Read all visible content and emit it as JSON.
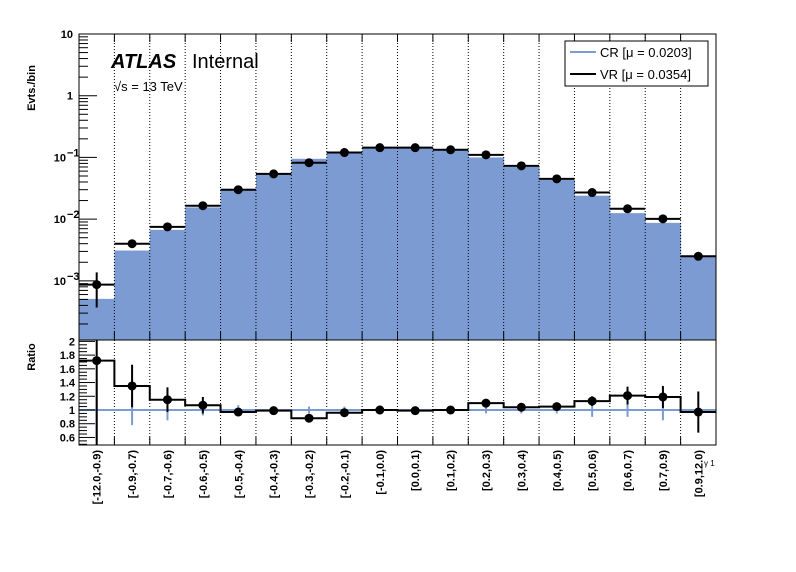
{
  "chart_data": [
    {
      "type": "bar",
      "panel": "main",
      "ylabel": "Evts./bin",
      "yscale": "log",
      "ylim": [
        0.00011,
        10
      ],
      "ytick_labels": [
        {
          "value": 10,
          "label": "10"
        },
        {
          "value": 1,
          "label": "1"
        },
        {
          "value": 0.1,
          "label": "10",
          "exp": "−1"
        },
        {
          "value": 0.01,
          "label": "10",
          "exp": "−2"
        },
        {
          "value": 0.001,
          "label": "10",
          "exp": "−3"
        }
      ],
      "grid": "vertical dotted at bin edges",
      "annotations": {
        "atlas": "ATLAS",
        "status": "Internal",
        "energy": "√s = 13 TeV"
      },
      "legend": {
        "placement": "top-right",
        "entries": [
          {
            "label": "CR [μ = 0.0203]",
            "color": "#7b9bd2"
          },
          {
            "label": "VR [μ = 0.0354]",
            "color": "#000000"
          }
        ]
      },
      "categories": [
        "[-12.0,-0.9)",
        "[-0.9,-0.7)",
        "[-0.7,-0.6)",
        "[-0.6,-0.5)",
        "[-0.5,-0.4)",
        "[-0.4,-0.3)",
        "[-0.3,-0.2)",
        "[-0.2,-0.1)",
        "[-0.1,0.0)",
        "[0.0,0.1)",
        "[0.1,0.2)",
        "[0.2,0.3)",
        "[0.3,0.4)",
        "[0.4,0.5)",
        "[0.5,0.6)",
        "[0.6,0.7)",
        "[0.7,0.9)",
        "[0.9,12.0)"
      ],
      "series": [
        {
          "name": "CR",
          "style": "filled histogram",
          "color": "#7b9bd2",
          "values": [
            0.00051,
            0.0031,
            0.0067,
            0.0155,
            0.031,
            0.055,
            0.095,
            0.124,
            0.143,
            0.146,
            0.133,
            0.1,
            0.07,
            0.043,
            0.024,
            0.0125,
            0.0087,
            0.0025
          ]
        },
        {
          "name": "VR",
          "style": "points with error bars and step line",
          "color": "#000000",
          "values": [
            0.00087,
            0.004,
            0.0075,
            0.0165,
            0.03,
            0.054,
            0.082,
            0.12,
            0.144,
            0.144,
            0.133,
            0.11,
            0.073,
            0.045,
            0.027,
            0.0147,
            0.0101,
            0.0025
          ],
          "errors": [
            0.0005,
            0.0004,
            0.0005,
            0.0008,
            0.001,
            0.0015,
            0.002,
            0.002,
            0.002,
            0.002,
            0.002,
            0.002,
            0.0018,
            0.0013,
            0.0012,
            0.0012,
            0.0011,
            0.0003
          ]
        }
      ]
    },
    {
      "type": "line",
      "panel": "ratio",
      "ylabel": "Ratio",
      "xlabel": "γ 1",
      "ylim": [
        0.49,
        2.02
      ],
      "ytick_labels": [
        "0.6",
        "0.8",
        "1",
        "1.2",
        "1.4",
        "1.6",
        "1.8",
        "2"
      ],
      "reference": {
        "value": 1,
        "color": "#7b9bd2",
        "errors": [
          0.45,
          0.22,
          0.15,
          0.08,
          0.07,
          0.05,
          0.05,
          0.05,
          0.02,
          0.02,
          0.02,
          0.05,
          0.05,
          0.05,
          0.1,
          0.1,
          0.15,
          0.03
        ]
      },
      "values": [
        1.72,
        1.35,
        1.15,
        1.07,
        0.97,
        0.99,
        0.88,
        0.96,
        1.0,
        0.99,
        1.0,
        1.1,
        1.04,
        1.05,
        1.13,
        1.21,
        1.19,
        0.97
      ],
      "errors": [
        1.25,
        0.31,
        0.18,
        0.12,
        0.05,
        0.04,
        0.04,
        0.04,
        0.03,
        0.03,
        0.03,
        0.04,
        0.04,
        0.05,
        0.07,
        0.13,
        0.16,
        0.3
      ]
    }
  ]
}
